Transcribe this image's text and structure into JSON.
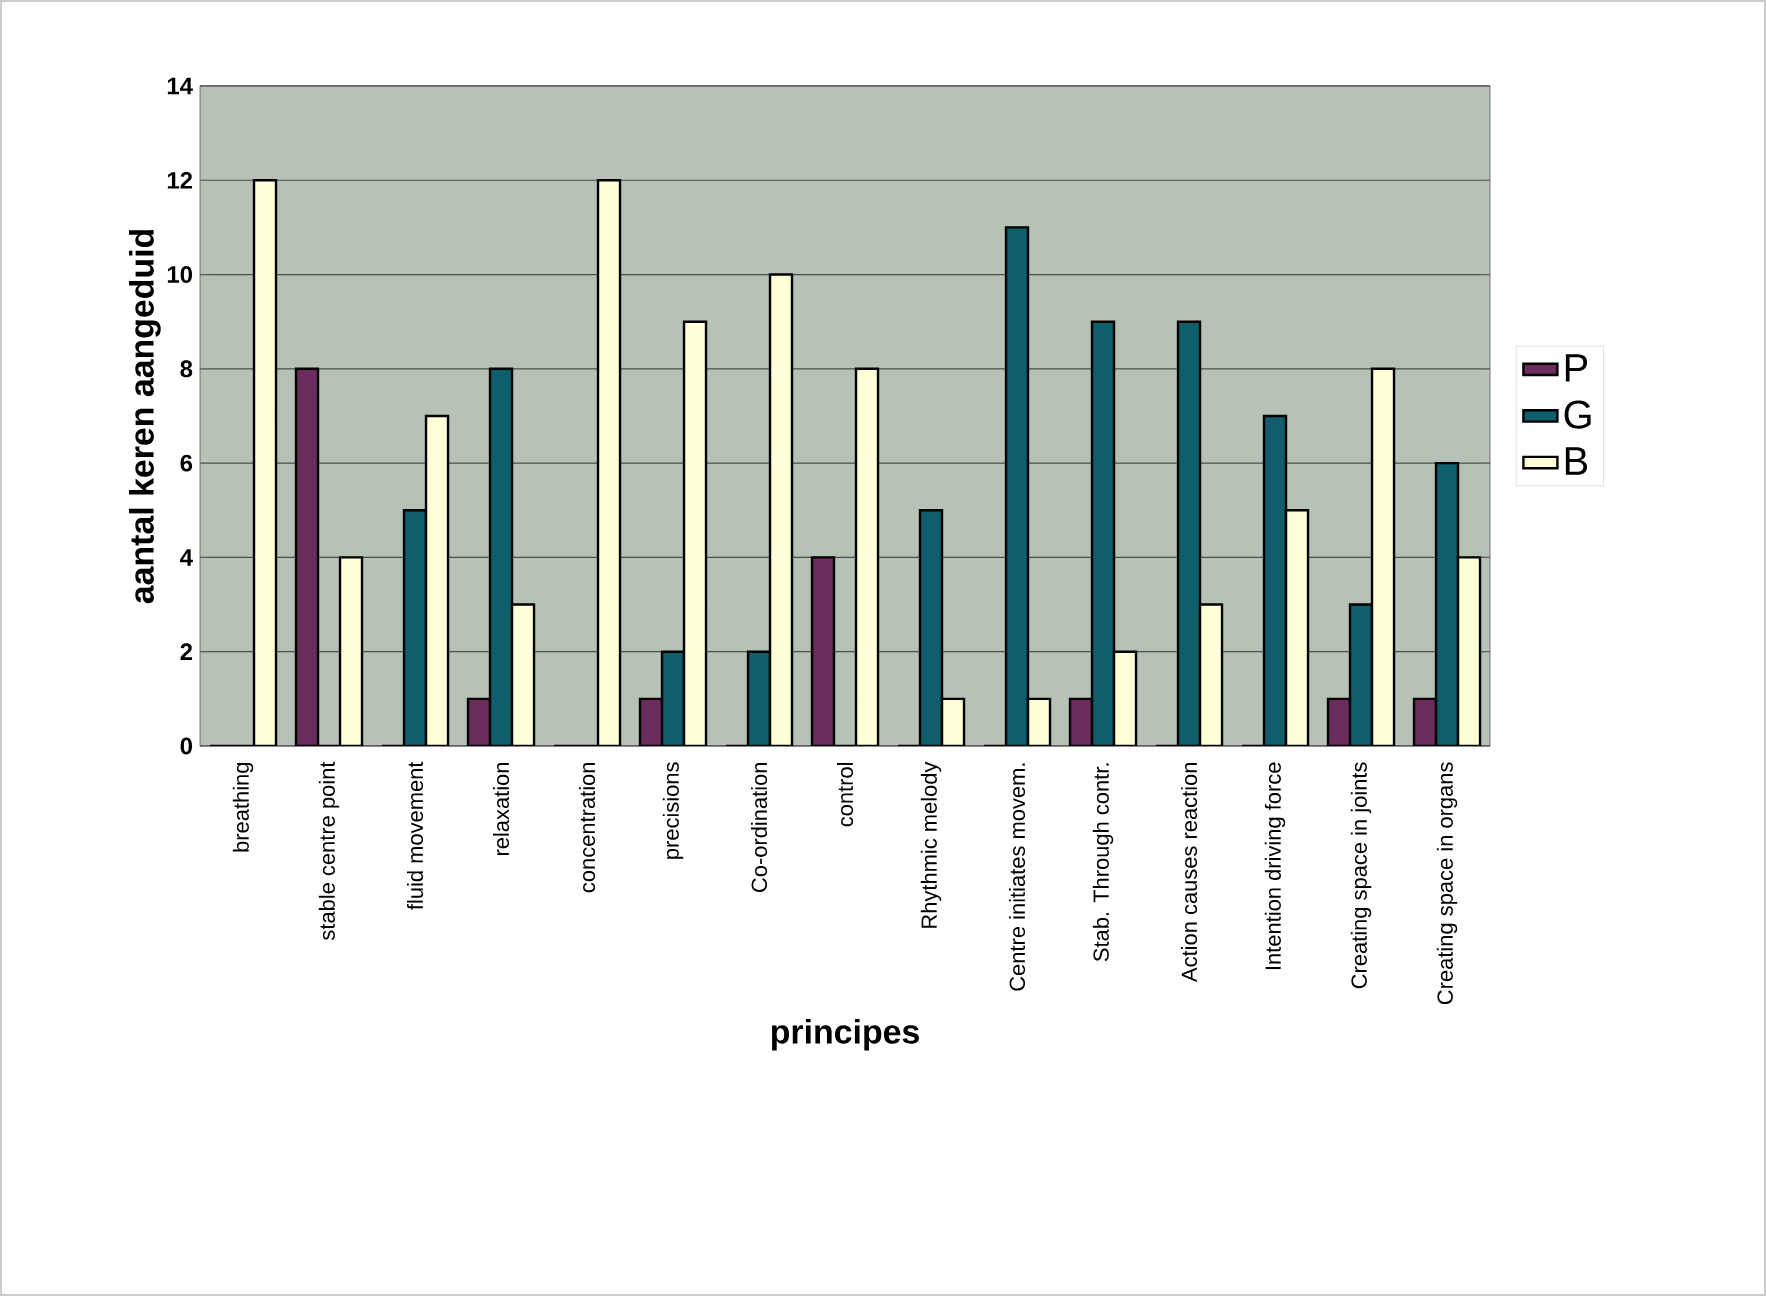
{
  "chart_data": {
    "type": "bar",
    "xlabel": "principes",
    "ylabel": "aantal keren aangeduid",
    "categories": [
      "breathing",
      "stable centre point",
      "fluid movement",
      "relaxation",
      "concentration",
      "precisions",
      "Co-ordination",
      "control",
      "Rhythmic melody",
      "Centre initiates movem.",
      "Stab. Through contr.",
      "Action causes reaction",
      "Intention driving force",
      "Creating space in joints",
      "Creating space in organs"
    ],
    "series": [
      {
        "name": "P",
        "color": "#6b2c5e",
        "values": [
          0,
          8,
          0,
          1,
          0,
          1,
          0,
          4,
          0,
          0,
          1,
          0,
          0,
          1,
          1
        ]
      },
      {
        "name": "G",
        "color": "#0f5e6c",
        "values": [
          0,
          0,
          5,
          8,
          0,
          2,
          2,
          0,
          5,
          11,
          9,
          9,
          7,
          3,
          6
        ]
      },
      {
        "name": "B",
        "color": "#ffffd8",
        "values": [
          12,
          4,
          7,
          3,
          12,
          9,
          10,
          8,
          1,
          1,
          2,
          3,
          5,
          8,
          4
        ]
      }
    ],
    "ylim": [
      0,
      14
    ],
    "yticks": [
      0,
      2,
      4,
      6,
      8,
      10,
      12,
      14
    ],
    "grid": "y",
    "legend": "right"
  }
}
